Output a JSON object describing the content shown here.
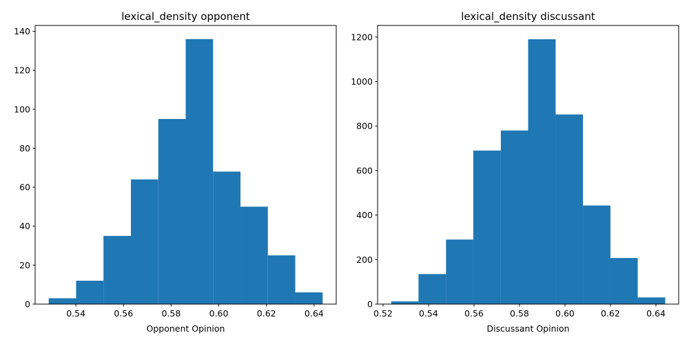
{
  "chart_data": [
    {
      "type": "bar",
      "title": "lexical_density opponent",
      "xlabel": "Opponent Opinion",
      "ylabel": "",
      "xlim": [
        0.5229,
        0.6493
      ],
      "ylim": [
        0,
        143
      ],
      "xticks": [
        0.54,
        0.56,
        0.58,
        0.6,
        0.62,
        0.64
      ],
      "xtick_labels": [
        "0.54",
        "0.56",
        "0.58",
        "0.60",
        "0.62",
        "0.64"
      ],
      "yticks": [
        0,
        20,
        40,
        60,
        80,
        100,
        120,
        140
      ],
      "ytick_labels": [
        "0",
        "20",
        "40",
        "60",
        "80",
        "100",
        "120",
        "140"
      ],
      "bin_edges": [
        0.5286,
        0.5401,
        0.5516,
        0.5631,
        0.5746,
        0.5861,
        0.5976,
        0.6091,
        0.6206,
        0.6321,
        0.6436
      ],
      "values": [
        3,
        12,
        35,
        64,
        95,
        136,
        68,
        50,
        25,
        6
      ],
      "color": "#1f77b4",
      "grid": false
    },
    {
      "type": "bar",
      "title": "lexical_density discussant",
      "xlabel": "Discussant Opinion",
      "ylabel": "",
      "xlim": [
        0.5176,
        0.65
      ],
      "ylim": [
        0,
        1252
      ],
      "xticks": [
        0.52,
        0.54,
        0.56,
        0.58,
        0.6,
        0.62,
        0.64
      ],
      "xtick_labels": [
        "0.52",
        "0.54",
        "0.56",
        "0.58",
        "0.60",
        "0.62",
        "0.64"
      ],
      "yticks": [
        0,
        200,
        400,
        600,
        800,
        1000,
        1200
      ],
      "ytick_labels": [
        "0",
        "200",
        "400",
        "600",
        "800",
        "1000",
        "1200"
      ],
      "bin_edges": [
        0.5236,
        0.5356,
        0.5477,
        0.5597,
        0.5718,
        0.5838,
        0.5959,
        0.6079,
        0.62,
        0.632,
        0.6441
      ],
      "values": [
        12,
        135,
        290,
        690,
        780,
        1190,
        852,
        443,
        207,
        30
      ],
      "color": "#1f77b4",
      "grid": false
    }
  ]
}
